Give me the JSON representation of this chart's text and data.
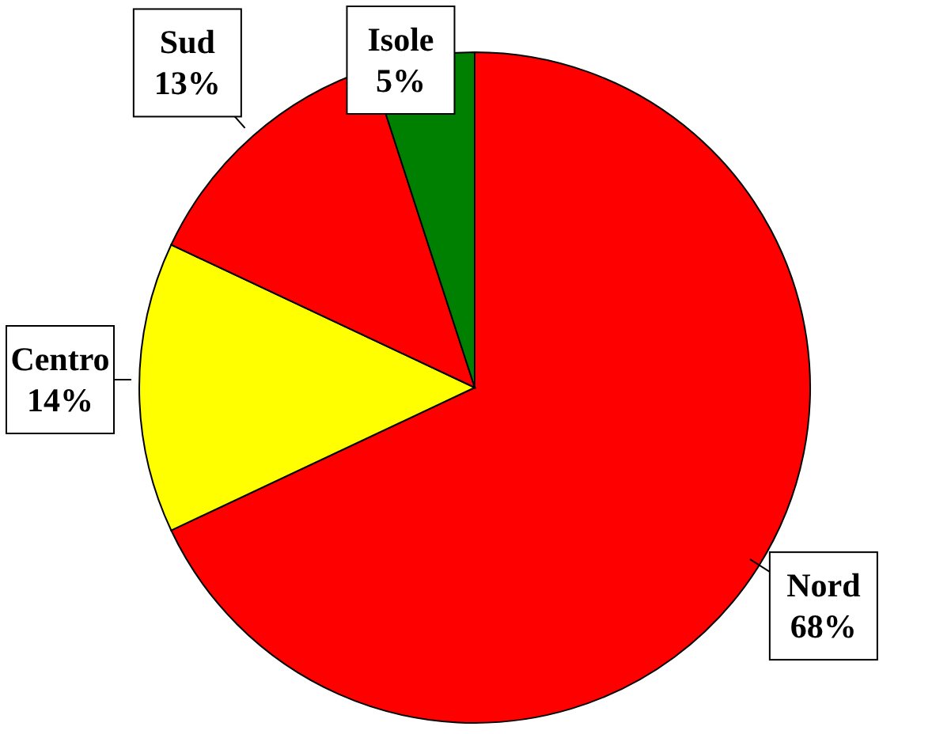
{
  "chart_data": {
    "type": "pie",
    "categories": [
      "Nord",
      "Centro",
      "Sud",
      "Isole"
    ],
    "values": [
      68,
      14,
      13,
      5
    ],
    "colors": [
      "#ff0000",
      "#ffff00",
      "#ff0000",
      "#008000"
    ],
    "value_labels": [
      "68%",
      "14%",
      "13%",
      "5%"
    ],
    "legend": false
  }
}
